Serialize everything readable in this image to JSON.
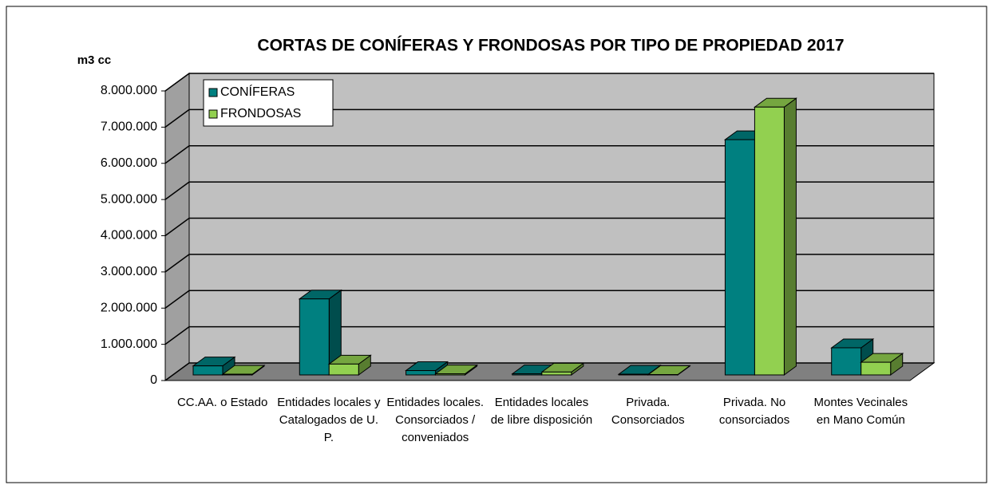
{
  "chart_data": {
    "type": "bar3d",
    "title": "CORTAS DE CONÍFERAS Y FRONDOSAS POR TIPO DE PROPIEDAD 2017",
    "y_label": "m3 cc",
    "categories": [
      "CC.AA. o Estado",
      "Entidades locales y Catalogados de U. P.",
      "Entidades locales. Consorciados / conveniados",
      "Entidades locales de libre disposición",
      "Privada. Consorciados",
      "Privada. No consorciados",
      "Montes Vecinales en Mano Común"
    ],
    "series": [
      {
        "name": "CONÍFERAS",
        "color": "#008080",
        "values": [
          250000,
          2100000,
          120000,
          30000,
          20000,
          6500000,
          750000
        ]
      },
      {
        "name": "FRONDOSAS",
        "color": "#92d050",
        "values": [
          20000,
          300000,
          30000,
          80000,
          10000,
          7400000,
          350000
        ]
      }
    ],
    "ylim": [
      0,
      8000000
    ],
    "yticks": [
      0,
      {
        "value": 1000000,
        "label": "1.000.000"
      },
      {
        "value": 2000000,
        "label": "2.000.000"
      },
      {
        "value": 3000000,
        "label": "3.000.000"
      },
      {
        "value": 4000000,
        "label": "4.000.000"
      },
      {
        "value": 5000000,
        "label": "5.000.000"
      },
      {
        "value": 6000000,
        "label": "6.000.000"
      },
      {
        "value": 7000000,
        "label": "7.000.000"
      },
      {
        "value": 8000000,
        "label": "8.000.000"
      }
    ],
    "grid": true,
    "legend": "top-left"
  }
}
